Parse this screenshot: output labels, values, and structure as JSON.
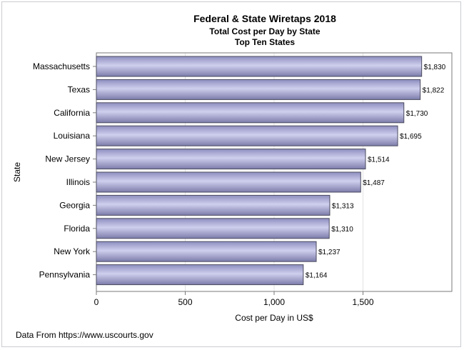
{
  "chart_data": {
    "type": "bar",
    "orientation": "horizontal",
    "title": "Federal & State Wiretaps 2018",
    "subtitle": "Total Cost per Day by State",
    "subtitle2": "Top Ten States",
    "xlabel": "Cost per Day in US$",
    "ylabel": "State",
    "categories": [
      "Massachusetts",
      "Texas",
      "California",
      "Louisiana",
      "New Jersey",
      "Illinois",
      "Georgia",
      "Florida",
      "New York",
      "Pennsylvania"
    ],
    "values": [
      1830,
      1822,
      1730,
      1695,
      1514,
      1487,
      1313,
      1310,
      1237,
      1164
    ],
    "data_labels": [
      "$1,830",
      "$1,822",
      "$1,730",
      "$1,695",
      "$1,514",
      "$1,487",
      "$1,313",
      "$1,310",
      "$1,237",
      "$1,164"
    ],
    "xlim": [
      0,
      2000
    ],
    "xticks": [
      0,
      500,
      1000,
      1500
    ],
    "xtick_labels": [
      "0",
      "500",
      "1,000",
      "1,500"
    ],
    "grid": "vertical",
    "bar_color": "#a7a7d2",
    "bar_edge_color": "#4a4a5e",
    "footnote": "Data From https://www.uscourts.gov"
  }
}
